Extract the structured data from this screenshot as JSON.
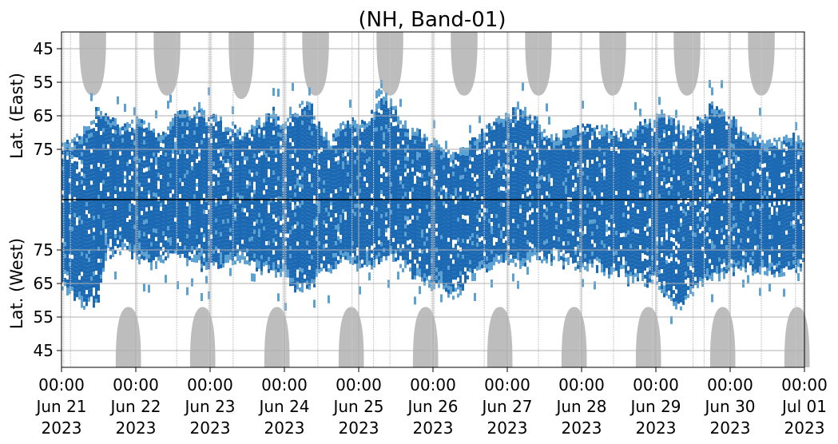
{
  "chart_data": {
    "type": "heatmap",
    "title": "(NH, Band-01)",
    "y_label_east": "Lat. (East)",
    "y_label_west": "Lat. (West)",
    "y_ticks_east": [
      "45",
      "55",
      "65",
      "75"
    ],
    "y_ticks_west": [
      "75",
      "65",
      "55",
      "45"
    ],
    "y_tick_values_east": [
      45,
      55,
      65,
      75
    ],
    "y_tick_values_west": [
      75,
      65,
      55,
      45
    ],
    "lat_range": [
      40,
      90
    ],
    "x_range": [
      "2023-06-21T00:00",
      "2023-07-01T00:00"
    ],
    "x_ticks": [
      {
        "time": "00:00",
        "date": "Jun 21",
        "year": "2023"
      },
      {
        "time": "00:00",
        "date": "Jun 22",
        "year": "2023"
      },
      {
        "time": "00:00",
        "date": "Jun 23",
        "year": "2023"
      },
      {
        "time": "00:00",
        "date": "Jun 24",
        "year": "2023"
      },
      {
        "time": "00:00",
        "date": "Jun 25",
        "year": "2023"
      },
      {
        "time": "00:00",
        "date": "Jun 26",
        "year": "2023"
      },
      {
        "time": "00:00",
        "date": "Jun 27",
        "year": "2023"
      },
      {
        "time": "00:00",
        "date": "Jun 28",
        "year": "2023"
      },
      {
        "time": "00:00",
        "date": "Jun 29",
        "year": "2023"
      },
      {
        "time": "00:00",
        "date": "Jun 30",
        "year": "2023"
      },
      {
        "time": "00:00",
        "date": "Jul 01",
        "year": "2023"
      }
    ],
    "grid": true,
    "divider_at_lat": 90,
    "colors": {
      "strong": "#1b68b3",
      "weak": "#5ba1d2",
      "masked": "#bdbdbd",
      "grid": "#b0b0b0",
      "axis": "#000000"
    },
    "masked_regions_east": [
      {
        "center_day": 0.42,
        "half_width_day": 0.18,
        "min_lat": 59
      },
      {
        "center_day": 1.42,
        "half_width_day": 0.18,
        "min_lat": 59
      },
      {
        "center_day": 2.42,
        "half_width_day": 0.17,
        "min_lat": 60
      },
      {
        "center_day": 3.42,
        "half_width_day": 0.18,
        "min_lat": 59
      },
      {
        "center_day": 4.42,
        "half_width_day": 0.18,
        "min_lat": 59
      },
      {
        "center_day": 5.42,
        "half_width_day": 0.18,
        "min_lat": 59
      },
      {
        "center_day": 6.42,
        "half_width_day": 0.18,
        "min_lat": 59
      },
      {
        "center_day": 7.42,
        "half_width_day": 0.18,
        "min_lat": 59
      },
      {
        "center_day": 8.42,
        "half_width_day": 0.18,
        "min_lat": 59
      },
      {
        "center_day": 9.42,
        "half_width_day": 0.18,
        "min_lat": 59
      }
    ],
    "masked_regions_west": [
      {
        "center_day": 0.9,
        "half_width_day": 0.17,
        "min_lat": 58
      },
      {
        "center_day": 1.9,
        "half_width_day": 0.17,
        "min_lat": 58
      },
      {
        "center_day": 2.9,
        "half_width_day": 0.17,
        "min_lat": 58
      },
      {
        "center_day": 3.9,
        "half_width_day": 0.17,
        "min_lat": 58
      },
      {
        "center_day": 4.9,
        "half_width_day": 0.17,
        "min_lat": 58
      },
      {
        "center_day": 5.9,
        "half_width_day": 0.17,
        "min_lat": 58
      },
      {
        "center_day": 6.9,
        "half_width_day": 0.17,
        "min_lat": 58
      },
      {
        "center_day": 7.9,
        "half_width_day": 0.17,
        "min_lat": 58
      },
      {
        "center_day": 8.9,
        "half_width_day": 0.17,
        "min_lat": 58
      },
      {
        "center_day": 9.9,
        "half_width_day": 0.17,
        "min_lat": 58
      }
    ],
    "extent_east": [
      [
        0.0,
        73
      ],
      [
        0.3,
        69
      ],
      [
        0.5,
        62
      ],
      [
        0.8,
        68
      ],
      [
        1.0,
        66
      ],
      [
        1.3,
        70
      ],
      [
        1.6,
        63
      ],
      [
        1.9,
        64
      ],
      [
        2.2,
        67
      ],
      [
        2.5,
        70
      ],
      [
        2.8,
        63
      ],
      [
        3.0,
        67
      ],
      [
        3.3,
        60
      ],
      [
        3.6,
        73
      ],
      [
        3.8,
        65
      ],
      [
        4.1,
        68
      ],
      [
        4.3,
        57
      ],
      [
        4.6,
        67
      ],
      [
        4.9,
        72
      ],
      [
        5.3,
        76
      ],
      [
        5.6,
        70
      ],
      [
        5.9,
        66
      ],
      [
        6.2,
        62
      ],
      [
        6.6,
        72
      ],
      [
        6.9,
        69
      ],
      [
        7.2,
        68
      ],
      [
        7.5,
        70
      ],
      [
        7.8,
        67
      ],
      [
        8.1,
        63
      ],
      [
        8.4,
        70
      ],
      [
        8.6,
        65
      ],
      [
        8.8,
        61
      ],
      [
        9.1,
        68
      ],
      [
        9.4,
        72
      ],
      [
        9.7,
        71
      ],
      [
        10.0,
        72
      ]
    ],
    "extent_west": [
      [
        0.0,
        65
      ],
      [
        0.2,
        60
      ],
      [
        0.45,
        58
      ],
      [
        0.6,
        74
      ],
      [
        0.9,
        75
      ],
      [
        1.2,
        70
      ],
      [
        1.5,
        73
      ],
      [
        1.8,
        71
      ],
      [
        2.1,
        70
      ],
      [
        2.4,
        73
      ],
      [
        2.7,
        69
      ],
      [
        3.0,
        68
      ],
      [
        3.2,
        62
      ],
      [
        3.5,
        68
      ],
      [
        3.8,
        72
      ],
      [
        4.1,
        70
      ],
      [
        4.4,
        73
      ],
      [
        4.7,
        68
      ],
      [
        5.0,
        65
      ],
      [
        5.3,
        62
      ],
      [
        5.6,
        69
      ],
      [
        5.9,
        72
      ],
      [
        6.2,
        71
      ],
      [
        6.5,
        73
      ],
      [
        6.8,
        71
      ],
      [
        7.1,
        70
      ],
      [
        7.4,
        68
      ],
      [
        7.7,
        66
      ],
      [
        8.0,
        65
      ],
      [
        8.3,
        58
      ],
      [
        8.6,
        66
      ],
      [
        8.9,
        68
      ],
      [
        9.2,
        70
      ],
      [
        9.5,
        68
      ],
      [
        9.8,
        69
      ],
      [
        10.0,
        70
      ]
    ],
    "vertical_gaps_day": [
      0.03,
      0.12,
      1.02,
      1.55,
      1.98,
      2.02,
      2.31,
      2.98,
      3.02,
      3.45,
      3.91,
      4.0,
      4.2,
      4.42,
      4.98,
      5.02,
      5.69,
      6.02,
      6.42,
      6.98,
      7.43,
      7.95,
      8.02,
      8.5,
      8.65,
      8.98,
      9.42,
      9.88,
      9.98
    ]
  }
}
